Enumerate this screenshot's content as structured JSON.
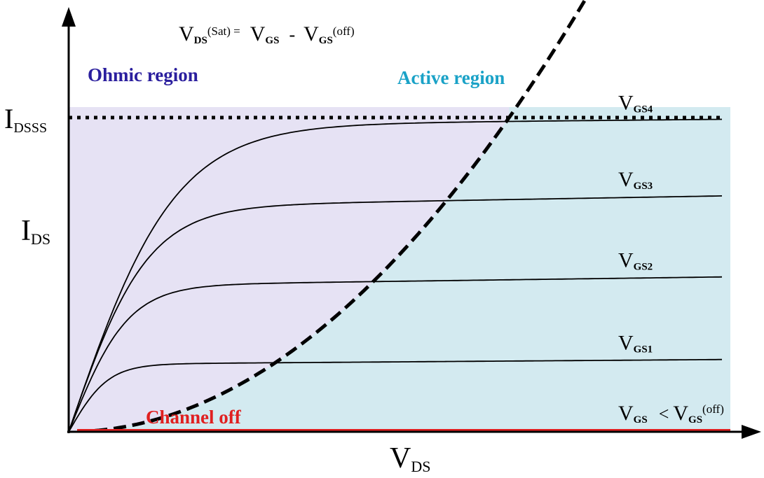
{
  "chart_data": {
    "type": "line",
    "title": "",
    "xlabel": {
      "main": "V",
      "sub": "DS"
    },
    "ylabel": {
      "main": "I",
      "sub": "DS"
    },
    "y_marker": {
      "main": "I",
      "sub": "DSSS",
      "value": 1.0
    },
    "xlim": [
      0,
      1
    ],
    "ylim": [
      0,
      1
    ],
    "grid": false,
    "regions": [
      {
        "name": "Ohmic region",
        "color": "#e6e2f4",
        "label_color": "#2b1f9e"
      },
      {
        "name": "Active region",
        "color": "#d3eaf0",
        "label_color": "#1aa2c7"
      }
    ],
    "boundary_label": {
      "lhs_main": "V",
      "lhs_sub": "DS",
      "lhs_sup": "(Sat) =",
      "rhs1_main": "V",
      "rhs1_sub": "GS",
      "minus": "-",
      "rhs2_main": "V",
      "rhs2_sub": "GS",
      "rhs2_sup": "(off)"
    },
    "channel_off": {
      "label": "Channel off",
      "color": "#e02020"
    },
    "cutoff_label": {
      "main": "V",
      "sub": "GS",
      "op": "<",
      "main2": "V",
      "sub2": "GS",
      "sup2": "(off)"
    },
    "series": [
      {
        "label_main": "V",
        "label_sub": "GS4",
        "sat": 0.975,
        "slope": 0.02,
        "kvd": 0.27
      },
      {
        "label_main": "V",
        "label_sub": "GS3",
        "sat": 0.715,
        "slope": 0.05,
        "kvd": 0.2
      },
      {
        "label_main": "V",
        "label_sub": "GS2",
        "sat": 0.465,
        "slope": 0.06,
        "kvd": 0.15
      },
      {
        "label_main": "V",
        "label_sub": "GS1",
        "sat": 0.215,
        "slope": 0.07,
        "kvd": 0.1
      }
    ],
    "boundary_k": 2.2
  }
}
